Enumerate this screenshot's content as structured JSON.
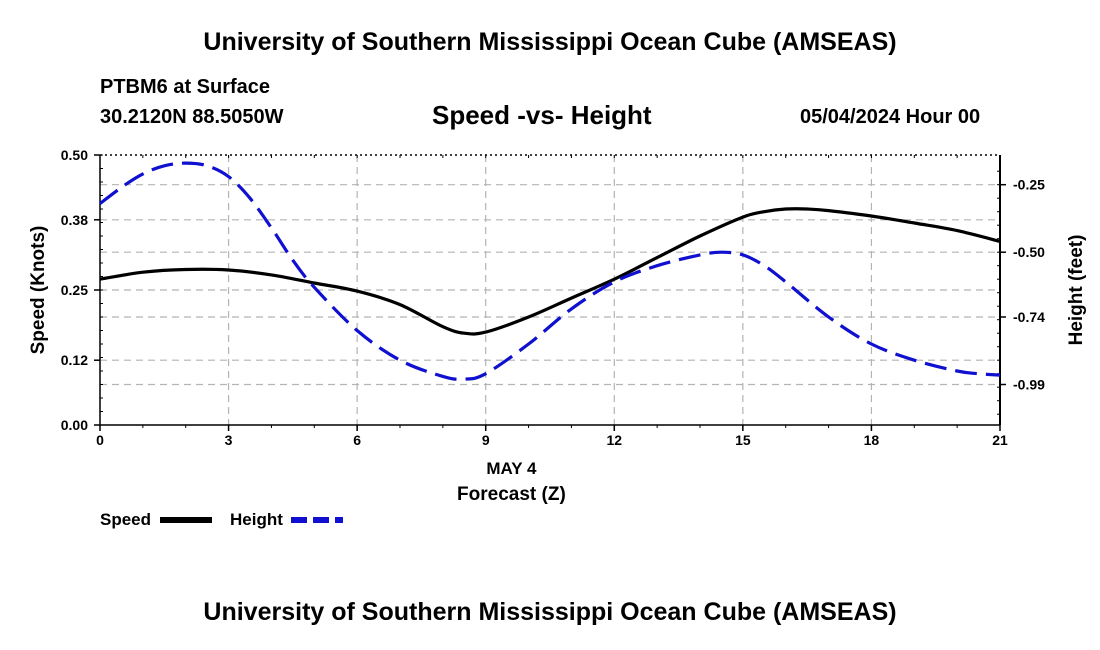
{
  "header": {
    "title": "University of Southern Mississippi Ocean Cube (AMSEAS)",
    "station": "PTBM6 at Surface",
    "coords": "30.2120N  88.5050W",
    "subtitle": "Speed -vs- Height",
    "datestamp": "05/04/2024 Hour 00"
  },
  "footer": {
    "title": "University of Southern Mississippi Ocean Cube (AMSEAS)"
  },
  "legend": {
    "speed_label": "Speed",
    "height_label": "Height"
  },
  "colors": {
    "speed": "#000000",
    "height": "#1010d0",
    "grid": "#b4b4b4"
  },
  "chart_data": {
    "type": "line",
    "title": "Speed -vs- Height",
    "xlabel": "Forecast (Z)",
    "xsublabel": "MAY 4",
    "ylabel": "Speed (Knots)",
    "y2label": "Height (feet)",
    "xlim": [
      0,
      21
    ],
    "ylim": [
      0,
      0.5
    ],
    "y2lim": [
      -1.14,
      -0.14
    ],
    "xticks": [
      "0",
      "3",
      "6",
      "9",
      "12",
      "15",
      "18",
      "21"
    ],
    "yticks": [
      "0.00",
      "0.12",
      "0.25",
      "0.38",
      "0.50"
    ],
    "y2ticks": [
      "-0.25",
      "-0.50",
      "-0.74",
      "-0.99"
    ],
    "grid": true,
    "legend_position": "bottom-left",
    "series": [
      {
        "name": "Speed",
        "axis": "left",
        "style": "solid",
        "x": [
          0,
          1,
          2,
          3,
          4,
          5,
          6,
          7,
          8,
          8.5,
          9,
          10,
          11,
          12,
          13,
          14,
          15,
          15.5,
          16,
          16.5,
          17,
          18,
          19,
          20,
          21
        ],
        "y": [
          0.27,
          0.283,
          0.288,
          0.287,
          0.278,
          0.263,
          0.248,
          0.223,
          0.182,
          0.17,
          0.172,
          0.2,
          0.235,
          0.27,
          0.31,
          0.35,
          0.385,
          0.395,
          0.4,
          0.4,
          0.397,
          0.387,
          0.374,
          0.36,
          0.34
        ]
      },
      {
        "name": "Height",
        "axis": "right",
        "style": "dashed",
        "x": [
          0,
          0.5,
          1,
          1.5,
          2,
          2.5,
          3,
          3.5,
          4,
          4.5,
          5,
          6,
          7,
          8,
          8.5,
          9,
          10,
          11,
          12,
          13,
          14,
          14.5,
          15,
          15.5,
          16,
          17,
          18,
          19,
          20,
          20.5,
          21
        ],
        "y": [
          -0.32,
          -0.26,
          -0.21,
          -0.18,
          -0.17,
          -0.18,
          -0.22,
          -0.3,
          -0.41,
          -0.53,
          -0.63,
          -0.79,
          -0.9,
          -0.96,
          -0.97,
          -0.95,
          -0.84,
          -0.71,
          -0.61,
          -0.55,
          -0.51,
          -0.5,
          -0.51,
          -0.55,
          -0.61,
          -0.74,
          -0.84,
          -0.9,
          -0.94,
          -0.95,
          -0.955
        ]
      }
    ]
  }
}
